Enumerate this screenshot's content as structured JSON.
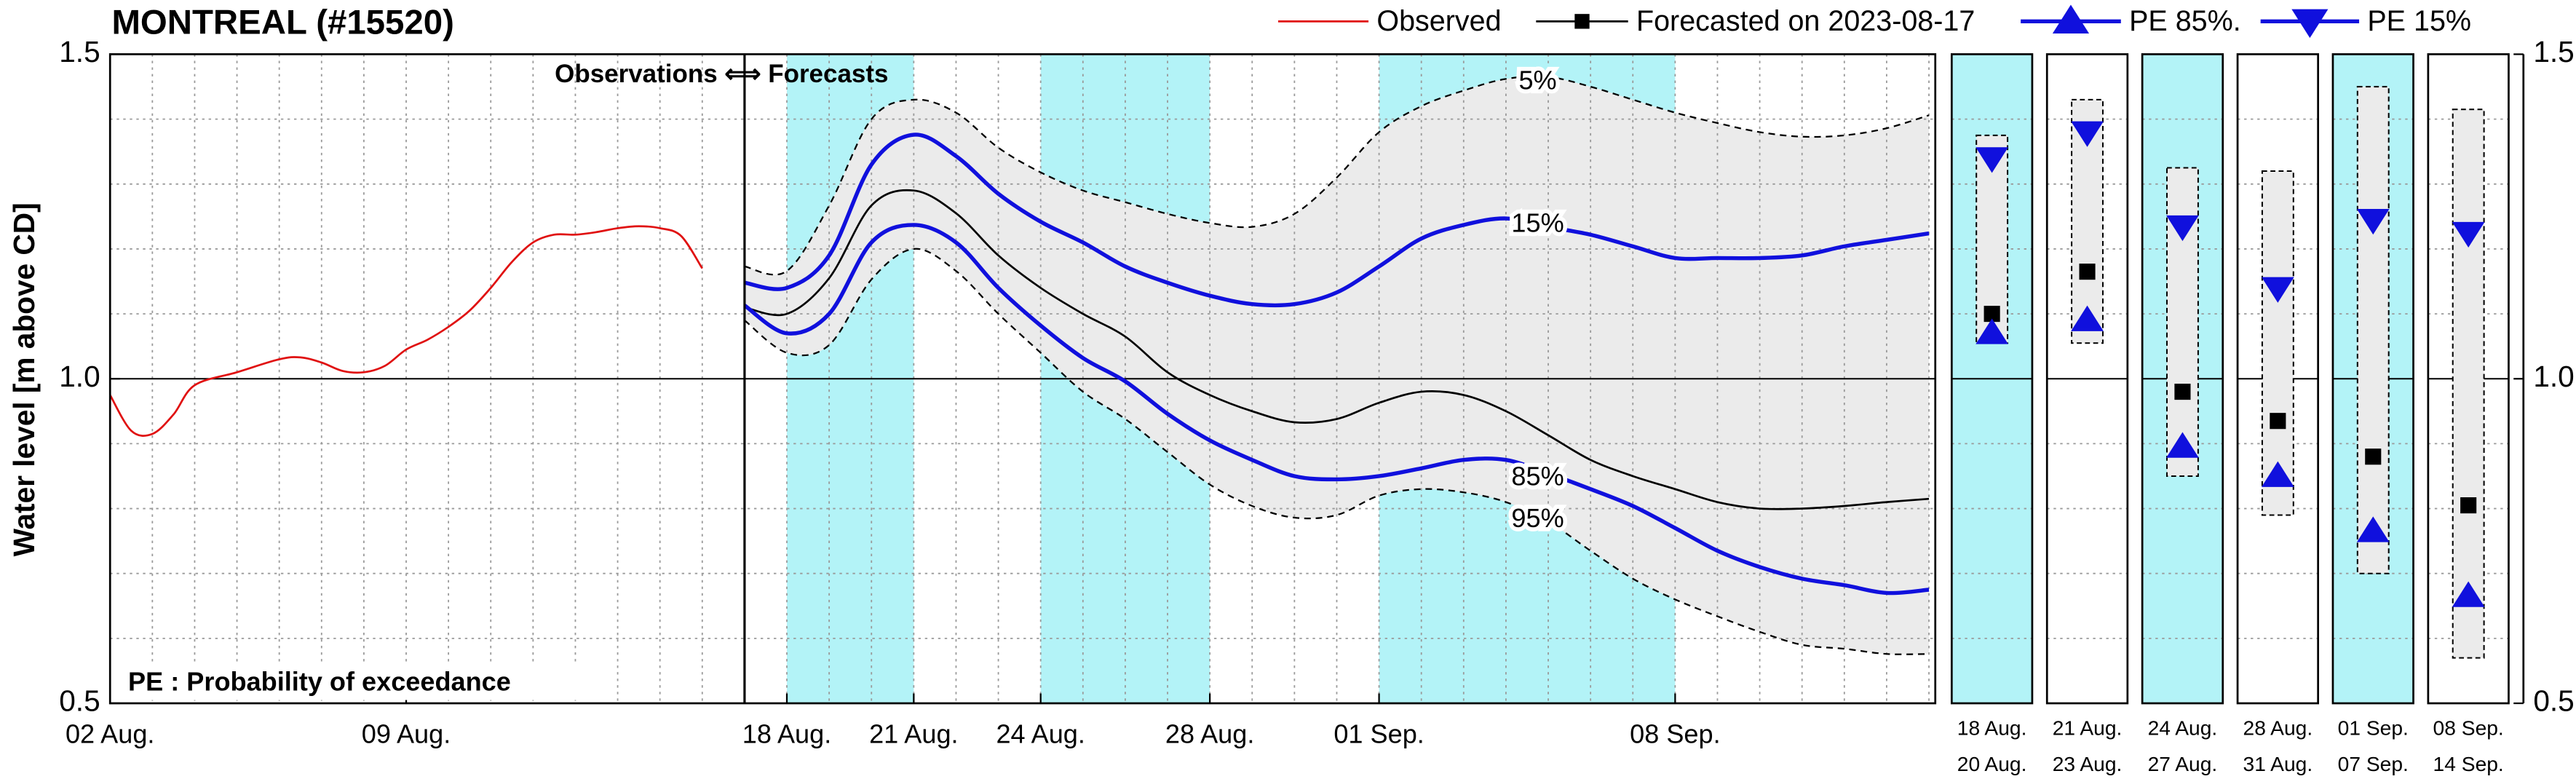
{
  "chart_data": {
    "type": "line",
    "title": "MONTREAL (#15520)",
    "ylabel": "Water level [m above CD]",
    "divider_label": "Observations ⟺ Forecasts",
    "note": "PE : Probability of exceedance",
    "xlim": [
      2,
      45.15
    ],
    "ylim": [
      0.5,
      1.5
    ],
    "xticks": [
      {
        "value": 2,
        "label": "02 Aug."
      },
      {
        "value": 9,
        "label": "09 Aug."
      },
      {
        "value": 18,
        "label": "18 Aug."
      },
      {
        "value": 21,
        "label": "21 Aug."
      },
      {
        "value": 24,
        "label": "24 Aug."
      },
      {
        "value": 28,
        "label": "28 Aug."
      },
      {
        "value": 32,
        "label": "01 Sep."
      },
      {
        "value": 39,
        "label": "08 Sep."
      }
    ],
    "yticks": [
      0.5,
      {
        "value": 1,
        "label": "1.0"
      },
      1.5
    ],
    "xgrid": [
      3,
      4,
      5,
      6,
      7,
      8,
      9,
      10,
      11,
      12,
      13,
      14,
      15,
      16,
      17,
      18,
      19,
      20,
      21,
      22,
      23,
      24,
      25,
      26,
      27,
      28,
      29,
      30,
      31,
      32,
      33,
      34,
      35,
      36,
      37,
      38,
      39,
      40,
      41,
      42,
      43,
      44,
      45
    ],
    "ygrid": [
      0.6,
      0.7,
      0.8,
      0.9,
      1.1,
      1.2,
      1.3,
      1.4
    ],
    "reference_line": 1,
    "divider_x": 17,
    "highlight_periods": [
      [
        18,
        21
      ],
      [
        24,
        28
      ],
      [
        32,
        39
      ]
    ],
    "highlight_color": "#b3f3f7",
    "envelope_color": "#ebebeb",
    "forecast_x": [
      17,
      18,
      19,
      20,
      21,
      22,
      23,
      24,
      25,
      26,
      27,
      28,
      29,
      30,
      31,
      32,
      33,
      34,
      35,
      36,
      37,
      38,
      39,
      40,
      41,
      42,
      43,
      44,
      45
    ],
    "series": [
      {
        "name": "Observed",
        "color": "#e01010",
        "marker": null,
        "x": [
          2,
          2.5,
          3,
          3.5,
          4,
          5,
          6,
          6.5,
          7,
          7.5,
          8,
          8.5,
          9,
          9.5,
          10,
          10.5,
          11,
          11.5,
          12,
          12.5,
          13,
          13.5,
          14,
          14.5,
          15,
          15.5,
          16
        ],
        "values": [
          0.975,
          0.92,
          0.915,
          0.945,
          0.99,
          1.01,
          1.03,
          1.033,
          1.025,
          1.012,
          1.01,
          1.02,
          1.045,
          1.06,
          1.08,
          1.105,
          1.14,
          1.18,
          1.21,
          1.222,
          1.222,
          1.226,
          1.232,
          1.235,
          1.232,
          1.22,
          1.17
        ]
      },
      {
        "name": "Forecasted on 2023-08-17",
        "color": "#000000",
        "marker": "square",
        "values": [
          1.11,
          1.1,
          1.155,
          1.267,
          1.29,
          1.255,
          1.19,
          1.14,
          1.1,
          1.065,
          1.01,
          0.975,
          0.95,
          0.933,
          0.938,
          0.963,
          0.98,
          0.975,
          0.95,
          0.913,
          0.875,
          0.85,
          0.83,
          0.81,
          0.8,
          0.8,
          0.804,
          0.81,
          0.815
        ]
      },
      {
        "name": "PE 85%.",
        "label": "85%",
        "color": "#1010dd",
        "marker": "triangle-up",
        "values": [
          1.113,
          1.07,
          1.1,
          1.21,
          1.237,
          1.21,
          1.14,
          1.082,
          1.032,
          0.996,
          0.946,
          0.905,
          0.875,
          0.85,
          0.845,
          0.85,
          0.862,
          0.875,
          0.875,
          0.854,
          0.83,
          0.804,
          0.77,
          0.735,
          0.71,
          0.692,
          0.682,
          0.67,
          0.675
        ]
      },
      {
        "name": "PE 15%",
        "label": "15%",
        "color": "#1010dd",
        "marker": "triangle-down",
        "values": [
          1.148,
          1.14,
          1.19,
          1.33,
          1.376,
          1.343,
          1.285,
          1.242,
          1.21,
          1.173,
          1.148,
          1.128,
          1.115,
          1.115,
          1.133,
          1.173,
          1.216,
          1.237,
          1.247,
          1.234,
          1.222,
          1.204,
          1.186,
          1.186,
          1.186,
          1.19,
          1.204,
          1.214,
          1.224
        ]
      }
    ],
    "bounds": [
      {
        "label": "5%",
        "color": "#000000",
        "values": [
          1.173,
          1.166,
          1.267,
          1.4,
          1.43,
          1.41,
          1.356,
          1.318,
          1.29,
          1.272,
          1.254,
          1.24,
          1.234,
          1.254,
          1.31,
          1.38,
          1.42,
          1.444,
          1.462,
          1.465,
          1.45,
          1.43,
          1.41,
          1.394,
          1.38,
          1.373,
          1.375,
          1.386,
          1.406
        ]
      },
      {
        "label": "95%",
        "color": "#000000",
        "values": [
          1.09,
          1.04,
          1.052,
          1.153,
          1.2,
          1.166,
          1.1,
          1.04,
          0.98,
          0.938,
          0.887,
          0.837,
          0.804,
          0.786,
          0.79,
          0.82,
          0.83,
          0.825,
          0.81,
          0.78,
          0.735,
          0.692,
          0.66,
          0.634,
          0.61,
          0.59,
          0.584,
          0.576,
          0.576
        ]
      }
    ],
    "panels": {
      "ylim": [
        0.5,
        1.5
      ],
      "yticks": [
        0.5,
        {
          "value": 1,
          "label": "1.0"
        },
        1.5
      ],
      "items": [
        {
          "start": "18 Aug.",
          "end": "20 Aug.",
          "highlighted": true,
          "low": 1.055,
          "high": 1.375,
          "forecast": 1.1,
          "pe85": 1.07,
          "pe15": 1.34
        },
        {
          "start": "21 Aug.",
          "end": "23 Aug.",
          "highlighted": false,
          "low": 1.055,
          "high": 1.43,
          "forecast": 1.165,
          "pe85": 1.09,
          "pe15": 1.38
        },
        {
          "start": "24 Aug.",
          "end": "27 Aug.",
          "highlighted": true,
          "low": 0.85,
          "high": 1.325,
          "forecast": 0.98,
          "pe85": 0.895,
          "pe15": 1.235
        },
        {
          "start": "28 Aug.",
          "end": "31 Aug.",
          "highlighted": false,
          "low": 0.79,
          "high": 1.32,
          "forecast": 0.935,
          "pe85": 0.85,
          "pe15": 1.14
        },
        {
          "start": "01 Sep.",
          "end": "07 Sep.",
          "highlighted": true,
          "low": 0.7,
          "high": 1.45,
          "forecast": 0.88,
          "pe85": 0.765,
          "pe15": 1.245
        },
        {
          "start": "08 Sep.",
          "end": "14 Sep.",
          "highlighted": false,
          "low": 0.57,
          "high": 1.415,
          "forecast": 0.805,
          "pe85": 0.665,
          "pe15": 1.225
        }
      ]
    }
  }
}
